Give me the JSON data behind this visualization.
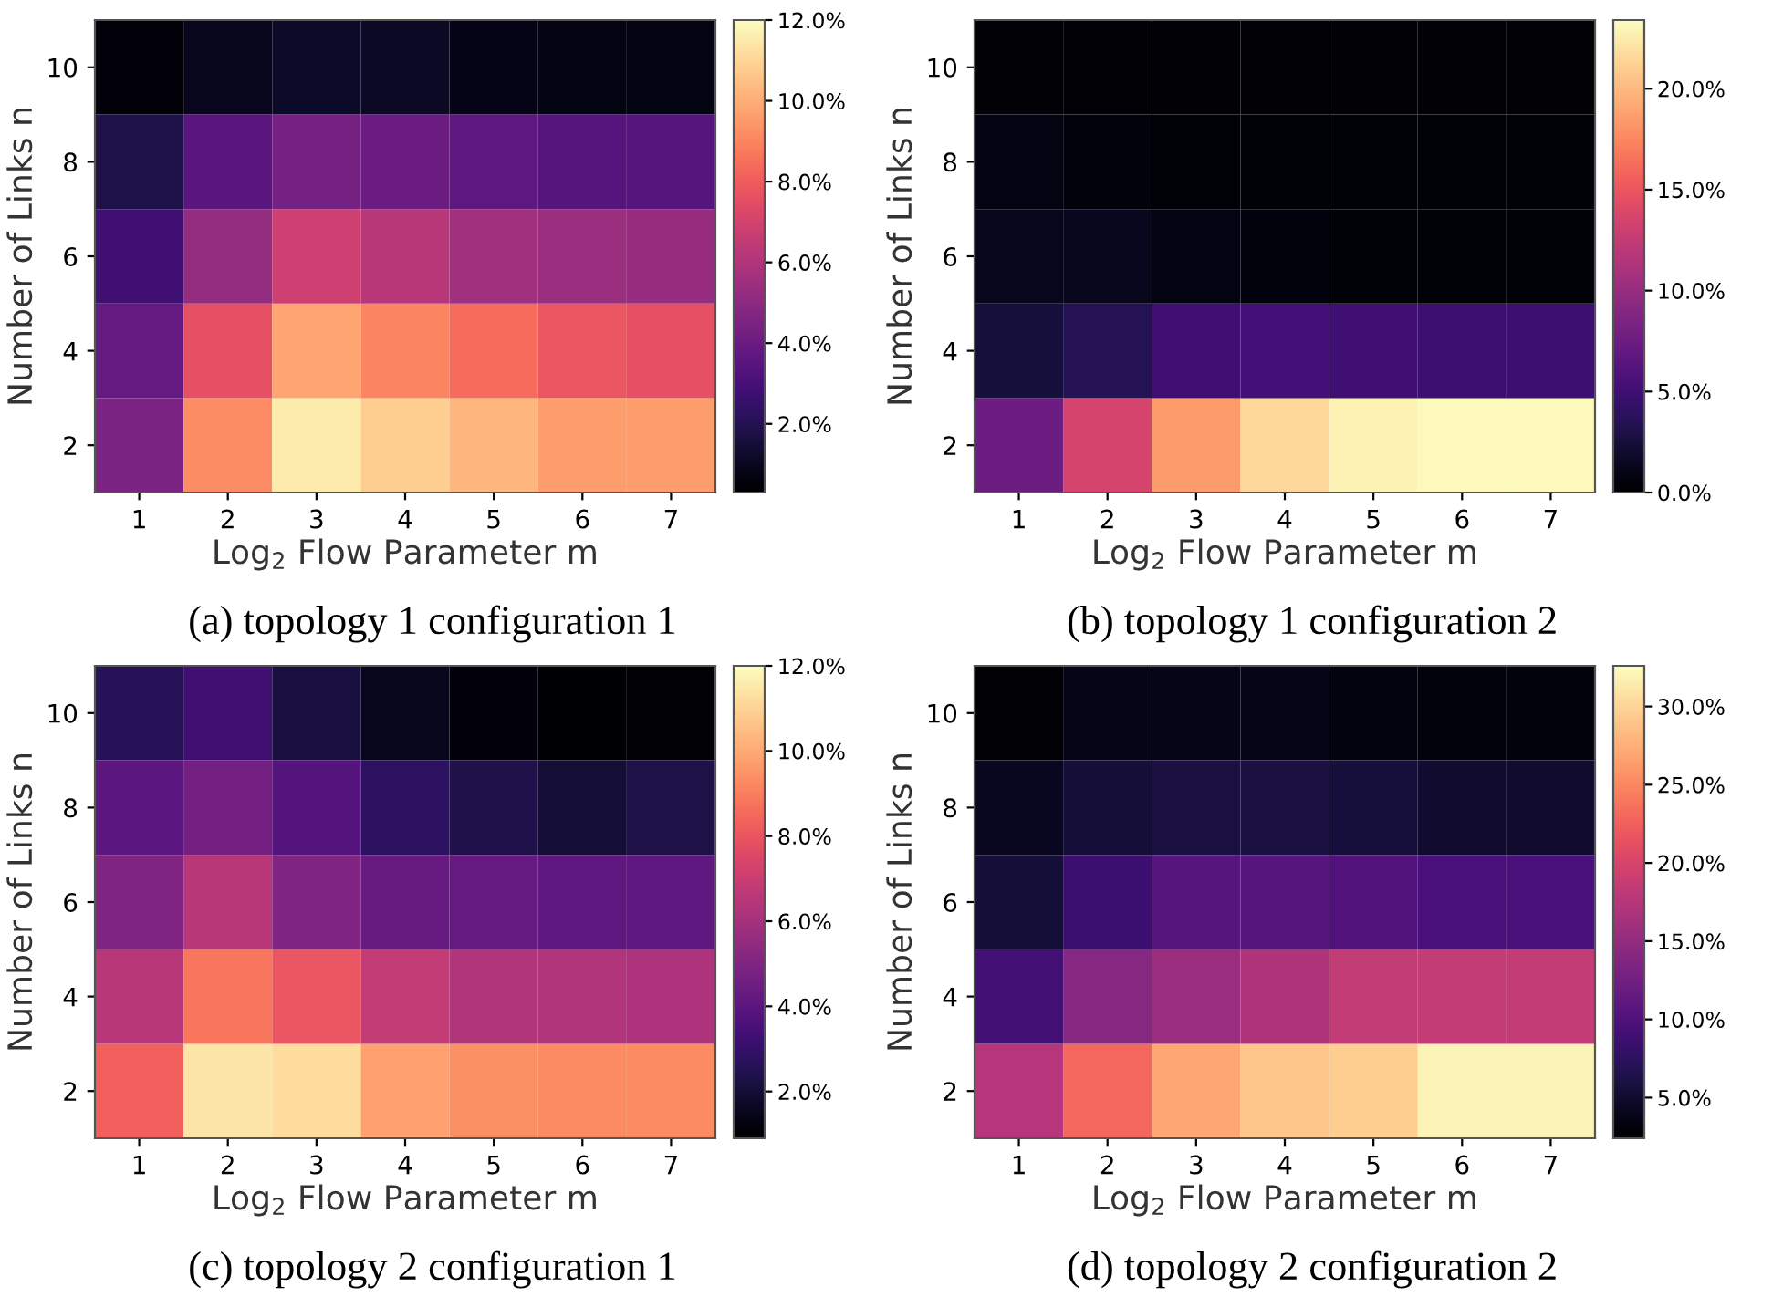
{
  "chart_data": [
    {
      "type": "heatmap",
      "title": "(a) topology 1 configuration 1",
      "xlabel": "Log$_{2}$ Flow Parameter m",
      "ylabel": "Number of Links n",
      "categories": [
        "1",
        "2",
        "3",
        "4",
        "5",
        "6",
        "7"
      ],
      "y_categories": [
        "10",
        "8",
        "6",
        "4",
        "2"
      ],
      "cells": [
        [
          0.5,
          0.9,
          1.2,
          1.1,
          0.8,
          0.7,
          0.7
        ],
        [
          1.8,
          3.5,
          4.3,
          4.0,
          3.6,
          3.4,
          3.4
        ],
        [
          2.8,
          5.2,
          6.8,
          6.2,
          5.6,
          5.4,
          5.3
        ],
        [
          3.8,
          7.6,
          9.8,
          9.0,
          8.4,
          7.8,
          7.6
        ],
        [
          4.5,
          9.2,
          11.5,
          10.8,
          10.2,
          9.6,
          9.6
        ]
      ],
      "clim": [
        0.3,
        12.0
      ],
      "cticks": [
        {
          "value": 2,
          "label": "2.0%"
        },
        {
          "value": 4,
          "label": "4.0%"
        },
        {
          "value": 6,
          "label": "6.0%"
        },
        {
          "value": 8,
          "label": "8.0%"
        },
        {
          "value": 10,
          "label": "10.0%"
        },
        {
          "value": 12,
          "label": "12.0%"
        }
      ]
    },
    {
      "type": "heatmap",
      "title": "(b) topology 1 configuration 2",
      "xlabel": "Log$_{2}$ Flow Parameter m",
      "ylabel": "Number of Links n",
      "categories": [
        "1",
        "2",
        "3",
        "4",
        "5",
        "6",
        "7"
      ],
      "y_categories": [
        "10",
        "8",
        "6",
        "4",
        "2"
      ],
      "cells": [
        [
          0.2,
          0.2,
          0.2,
          0.2,
          0.2,
          0.2,
          0.2
        ],
        [
          0.8,
          0.5,
          0.3,
          0.3,
          0.3,
          0.3,
          0.3
        ],
        [
          1.2,
          1.3,
          0.8,
          0.6,
          0.3,
          0.3,
          0.3
        ],
        [
          2.5,
          3.5,
          5.0,
          5.2,
          5.0,
          4.8,
          4.8
        ],
        [
          7.5,
          13.5,
          18.5,
          21.5,
          22.8,
          23.2,
          23.2
        ]
      ],
      "clim": [
        0.0,
        23.4
      ],
      "cticks": [
        {
          "value": 0,
          "label": "0.0%"
        },
        {
          "value": 5,
          "label": "5.0%"
        },
        {
          "value": 10,
          "label": "10.0%"
        },
        {
          "value": 15,
          "label": "15.0%"
        },
        {
          "value": 20,
          "label": "20.0%"
        }
      ]
    },
    {
      "type": "heatmap",
      "title": "(c) topology 2 configuration 1",
      "xlabel": "Log$_{2}$ Flow Parameter m",
      "ylabel": "Number of Links n",
      "categories": [
        "1",
        "2",
        "3",
        "4",
        "5",
        "6",
        "7"
      ],
      "y_categories": [
        "10",
        "8",
        "6",
        "4",
        "2"
      ],
      "cells": [
        [
          2.6,
          3.2,
          2.2,
          1.5,
          1.1,
          0.9,
          1.0
        ],
        [
          4.0,
          4.6,
          3.8,
          2.8,
          2.4,
          2.0,
          2.3
        ],
        [
          5.0,
          6.5,
          5.0,
          4.3,
          4.2,
          4.1,
          4.1
        ],
        [
          6.5,
          8.8,
          8.0,
          6.8,
          6.3,
          6.3,
          6.2
        ],
        [
          8.3,
          11.4,
          11.2,
          9.8,
          9.4,
          9.3,
          9.3
        ]
      ],
      "clim": [
        0.9,
        12.0
      ],
      "cticks": [
        {
          "value": 2,
          "label": "2.0%"
        },
        {
          "value": 4,
          "label": "4.0%"
        },
        {
          "value": 6,
          "label": "6.0%"
        },
        {
          "value": 8,
          "label": "8.0%"
        },
        {
          "value": 10,
          "label": "10.0%"
        },
        {
          "value": 12,
          "label": "12.0%"
        }
      ]
    },
    {
      "type": "heatmap",
      "title": "(d) topology 2 configuration 2",
      "xlabel": "Log$_{2}$ Flow Parameter m",
      "ylabel": "Number of Links n",
      "categories": [
        "1",
        "2",
        "3",
        "4",
        "5",
        "6",
        "7"
      ],
      "y_categories": [
        "10",
        "8",
        "6",
        "4",
        "2"
      ],
      "cells": [
        [
          2.6,
          3.8,
          3.8,
          3.7,
          3.3,
          3.0,
          3.0
        ],
        [
          4.2,
          5.5,
          6.0,
          6.0,
          5.6,
          5.0,
          5.0
        ],
        [
          5.5,
          8.5,
          10.5,
          10.5,
          10.0,
          9.5,
          9.5
        ],
        [
          9.0,
          14.0,
          15.5,
          17.0,
          18.5,
          18.5,
          18.5
        ],
        [
          17.5,
          23.0,
          27.0,
          29.0,
          29.5,
          32.0,
          32.0
        ]
      ],
      "clim": [
        2.4,
        32.6
      ],
      "cticks": [
        {
          "value": 5,
          "label": "5.0%"
        },
        {
          "value": 10,
          "label": "10.0%"
        },
        {
          "value": 15,
          "label": "15.0%"
        },
        {
          "value": 20,
          "label": "20.0%"
        },
        {
          "value": 25,
          "label": "25.0%"
        },
        {
          "value": 30,
          "label": "30.0%"
        }
      ]
    }
  ]
}
